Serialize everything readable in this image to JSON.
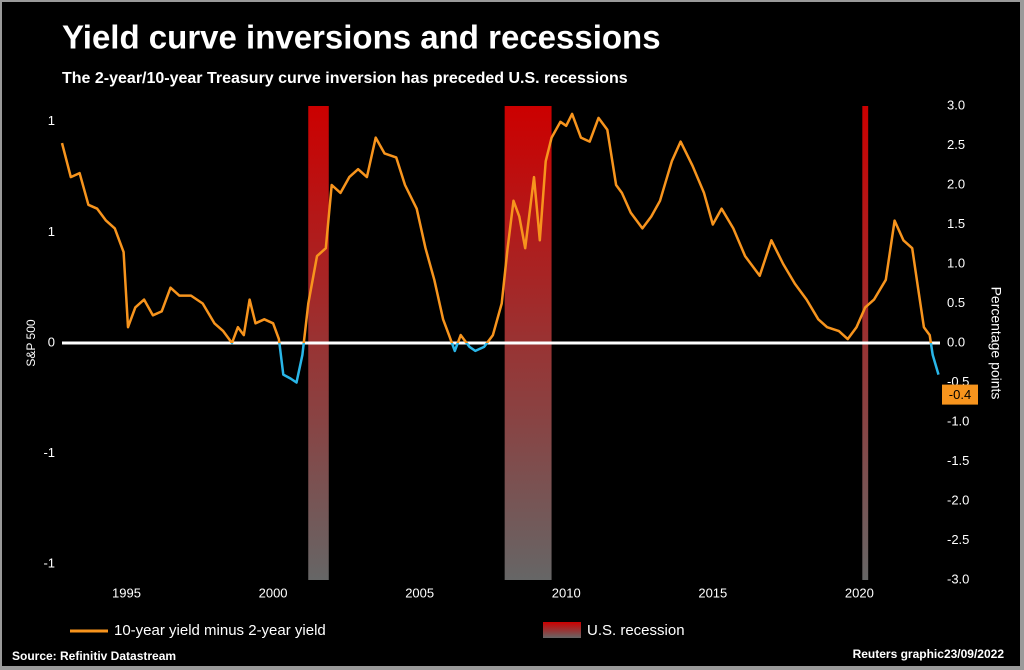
{
  "chart_data": {
    "type": "line",
    "title": "Yield curve inversions and recessions",
    "subtitle": "The 2-year/10-year Treasury curve inversion has preceded U.S. recessions",
    "y_label": "S&P 500",
    "y2_label": "Percentage points",
    "source": "Source: Refinitiv Datastream",
    "credit": "Reuters graphic23/09/2022",
    "xlim": [
      1992.8,
      2022.75
    ],
    "xticks": [
      1995,
      2000,
      2005,
      2010,
      2015,
      2020
    ],
    "ylim": [
      -1.5,
      1.5
    ],
    "yticks": [
      {
        "value": 1.4,
        "label": "1"
      },
      {
        "value": 0.7,
        "label": "1"
      },
      0,
      {
        "value": -0.7,
        "label": "-1"
      },
      {
        "value": -1.4,
        "label": "-1"
      }
    ],
    "y2lim": [
      -3,
      3
    ],
    "y2ticks": [
      {
        "value": 3,
        "label": "3.0"
      },
      {
        "value": 2.5,
        "label": "2.5"
      },
      {
        "value": 2,
        "label": "2.0"
      },
      {
        "value": 1.5,
        "label": "1.5"
      },
      {
        "value": 1,
        "label": "1.0"
      },
      {
        "value": 0.5,
        "label": "0.5"
      },
      {
        "value": 0,
        "label": "0.0"
      },
      {
        "value": -0.5,
        "label": "-0.5"
      },
      {
        "value": -1,
        "label": "-1.0"
      },
      {
        "value": -1.5,
        "label": "-1.5"
      },
      {
        "value": -2,
        "label": "-2.0"
      },
      {
        "value": -2.5,
        "label": "-2.5"
      },
      {
        "value": -3,
        "label": "-3.0"
      }
    ],
    "recession_name": "U.S. recession",
    "recessions": [
      [
        2001.2,
        2001.9
      ],
      [
        2007.9,
        2009.5
      ],
      [
        2020.1,
        2020.3
      ]
    ],
    "recession_color_top": "#cc0000",
    "recession_color_bottom": "#666666",
    "negative_color": "#29b6e8",
    "end_label": "-0.4",
    "series": [
      {
        "name": "10-year yield minus 2-year yield",
        "color": "#f7941d",
        "axis": "y2",
        "x": [
          1992.8,
          1993.1,
          1993.4,
          1993.7,
          1994.0,
          1994.3,
          1994.6,
          1994.9,
          1995.05,
          1995.3,
          1995.6,
          1995.9,
          1996.2,
          1996.5,
          1996.8,
          1997.2,
          1997.6,
          1998.0,
          1998.3,
          1998.6,
          1998.8,
          1999.0,
          1999.2,
          1999.4,
          1999.7,
          2000.0,
          2000.2,
          2000.35,
          2000.6,
          2000.8,
          2001.0,
          2001.2,
          2001.5,
          2001.8,
          2002.0,
          2002.3,
          2002.6,
          2002.9,
          2003.2,
          2003.5,
          2003.8,
          2004.2,
          2004.5,
          2004.9,
          2005.2,
          2005.5,
          2005.8,
          2006.0,
          2006.2,
          2006.4,
          2006.7,
          2006.9,
          2007.2,
          2007.5,
          2007.8,
          2008.0,
          2008.2,
          2008.4,
          2008.6,
          2008.9,
          2009.1,
          2009.3,
          2009.5,
          2009.8,
          2010.0,
          2010.2,
          2010.5,
          2010.8,
          2011.1,
          2011.4,
          2011.7,
          2011.9,
          2012.2,
          2012.6,
          2012.9,
          2013.2,
          2013.6,
          2013.9,
          2014.3,
          2014.7,
          2015.0,
          2015.3,
          2015.7,
          2016.1,
          2016.6,
          2017.0,
          2017.4,
          2017.8,
          2018.2,
          2018.6,
          2018.9,
          2019.3,
          2019.6,
          2019.9,
          2020.2,
          2020.5,
          2020.9,
          2021.2,
          2021.5,
          2021.8,
          2022.0,
          2022.2,
          2022.4,
          2022.5,
          2022.7
        ],
        "values": [
          2.53,
          2.1,
          2.15,
          1.75,
          1.7,
          1.55,
          1.45,
          1.15,
          0.2,
          0.45,
          0.55,
          0.35,
          0.4,
          0.7,
          0.6,
          0.6,
          0.5,
          0.25,
          0.15,
          0.0,
          0.2,
          0.1,
          0.55,
          0.25,
          0.3,
          0.25,
          0.05,
          -0.4,
          -0.45,
          -0.5,
          -0.15,
          0.5,
          1.1,
          1.2,
          2.0,
          1.9,
          2.1,
          2.2,
          2.1,
          2.6,
          2.4,
          2.35,
          2.0,
          1.7,
          1.2,
          0.8,
          0.3,
          0.1,
          -0.1,
          0.1,
          -0.05,
          -0.1,
          -0.05,
          0.1,
          0.5,
          1.2,
          1.8,
          1.6,
          1.2,
          2.1,
          1.3,
          2.3,
          2.6,
          2.8,
          2.75,
          2.9,
          2.6,
          2.55,
          2.85,
          2.7,
          2.0,
          1.9,
          1.65,
          1.45,
          1.6,
          1.8,
          2.3,
          2.55,
          2.25,
          1.9,
          1.5,
          1.7,
          1.45,
          1.1,
          0.85,
          1.3,
          1.0,
          0.75,
          0.55,
          0.3,
          0.2,
          0.15,
          0.05,
          0.2,
          0.45,
          0.55,
          0.8,
          1.55,
          1.3,
          1.2,
          0.7,
          0.2,
          0.1,
          -0.15,
          -0.4
        ]
      }
    ]
  }
}
